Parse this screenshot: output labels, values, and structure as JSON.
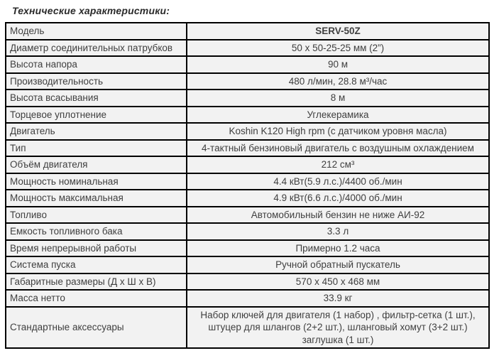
{
  "title": "Технические характеристики:",
  "colors": {
    "table_border": "#000000",
    "cell_background": "#f2f2f2",
    "text": "#3f3f3f",
    "page_background": "#ffffff"
  },
  "table": {
    "rows": [
      {
        "label": "Модель",
        "value": "SERV-50Z",
        "value_bold": true
      },
      {
        "label": "Диаметр соединительных  патрубков",
        "value": "50 x 50-25-25 мм (2”)"
      },
      {
        "label": "Высота напора",
        "value": "90 м"
      },
      {
        "label": "Производительность",
        "value": "480 л/мин, 28.8 м³/час"
      },
      {
        "label": "Высота всасывания",
        "value": "8 м"
      },
      {
        "label": "Торцевое уплотнение",
        "value": "Углекерамика"
      },
      {
        "label": "Двигатель",
        "value": "Koshin K120 High rpm (с датчиком уровня масла)"
      },
      {
        "label": "Тип",
        "value": "4-тактный бензиновый двигатель с воздушным охлаждением"
      },
      {
        "label": "Объём двигателя",
        "value": "212 см³"
      },
      {
        "label": "Мощность номинальная",
        "value": "4.4 кВт(5.9 л.с.)/4400 об./мин"
      },
      {
        "label": "Мощность максимальная",
        "value": "4.9 кВт(6.6 л.с.)/4000 об./мин"
      },
      {
        "label": "Топливо",
        "value": "Автомобильный бензин не ниже АИ-92"
      },
      {
        "label": "Емкость топливного бака",
        "value": "3.3 л"
      },
      {
        "label": "Время непрерывной работы",
        "value": "Примерно 1.2  часа"
      },
      {
        "label": "Система пуска",
        "value": "Ручной обратный пускатель"
      },
      {
        "label": "Габаритные размеры (Д х Ш х В)",
        "value": "570 x 450 x 468 мм"
      },
      {
        "label": "Масса нетто",
        "value": "33.9 кг"
      },
      {
        "label": "Стандартные аксессуары",
        "value": "Набор ключей для двигателя (1 набор) , фильтр-сетка (1 шт.),\nштуцер для шлангов (2+2 шт.), шланговый хомут (3+2 шт.)\nзаглушка (1 шт.)",
        "multiline": true
      }
    ]
  }
}
